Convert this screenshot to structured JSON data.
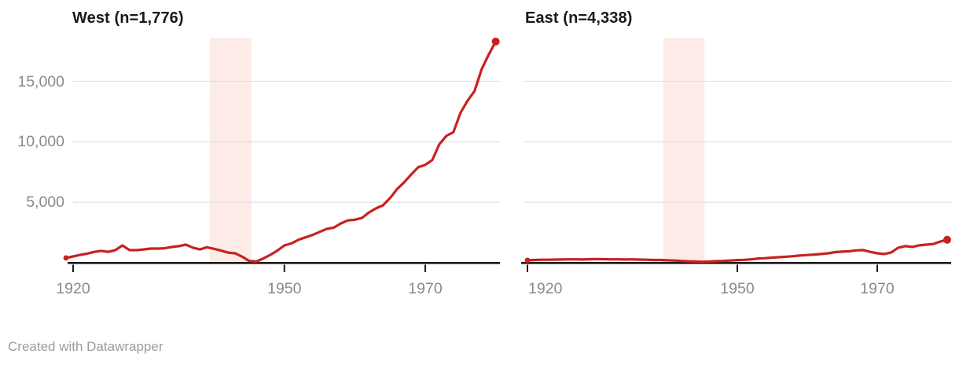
{
  "figure": {
    "footer_text": "Created with Datawrapper"
  },
  "colors": {
    "line": "#c7221f",
    "band": "#fcebe7",
    "grid": "#e3e3e3",
    "axis": "#1a1a1a",
    "tick_label": "#8a8a8a",
    "title": "#1a1a1a",
    "footer_text": "#9c9c9c",
    "background": "#ffffff"
  },
  "chart_data": [
    {
      "id": "west",
      "type": "line",
      "title": "West (n=1,776)",
      "xlabel": "",
      "ylabel": "",
      "legend": "none",
      "grid": true,
      "xlim": [
        1919,
        1981
      ],
      "ylim": [
        0,
        18600
      ],
      "highlight_band": {
        "from": 1939.4,
        "to": 1945.3,
        "meaning": "shaded vertical range ~1939-1945"
      },
      "xticks": [
        {
          "value": 1920,
          "label": "1920"
        },
        {
          "value": 1950,
          "label": "1950"
        },
        {
          "value": 1970,
          "label": "1970"
        }
      ],
      "yticks": [
        {
          "value": 5000,
          "label": "5,000"
        },
        {
          "value": 10000,
          "label": "10,000"
        },
        {
          "value": 15000,
          "label": "15,000"
        }
      ],
      "x": [
        1919,
        1920,
        1921,
        1922,
        1923,
        1924,
        1925,
        1926,
        1927,
        1928,
        1929,
        1930,
        1931,
        1932,
        1933,
        1934,
        1935,
        1936,
        1937,
        1938,
        1939,
        1940,
        1941,
        1942,
        1943,
        1944,
        1945,
        1946,
        1947,
        1948,
        1949,
        1950,
        1951,
        1952,
        1953,
        1954,
        1955,
        1956,
        1957,
        1958,
        1959,
        1960,
        1961,
        1962,
        1963,
        1964,
        1965,
        1966,
        1967,
        1968,
        1969,
        1970,
        1971,
        1972,
        1973,
        1974,
        1975,
        1976,
        1977,
        1978,
        1979,
        1980
      ],
      "values": [
        400,
        520,
        650,
        750,
        900,
        980,
        900,
        1050,
        1430,
        1050,
        1040,
        1100,
        1170,
        1170,
        1200,
        1300,
        1370,
        1500,
        1250,
        1100,
        1280,
        1150,
        1000,
        840,
        780,
        500,
        150,
        100,
        350,
        650,
        1000,
        1430,
        1600,
        1900,
        2100,
        2300,
        2550,
        2800,
        2900,
        3250,
        3500,
        3560,
        3700,
        4150,
        4500,
        4750,
        5350,
        6100,
        6650,
        7300,
        7900,
        8100,
        8500,
        9800,
        10500,
        10800,
        12400,
        13400,
        14200,
        16000,
        17200,
        18300
      ]
    },
    {
      "id": "east",
      "type": "line",
      "title": "East (n=4,338)",
      "xlabel": "",
      "ylabel": "",
      "legend": "none",
      "grid": true,
      "xlim": [
        1919,
        1981
      ],
      "ylim": [
        0,
        18600
      ],
      "highlight_band": {
        "from": 1939.4,
        "to": 1945.3,
        "meaning": "shaded vertical range ~1939-1945"
      },
      "xticks": [
        {
          "value": 1920,
          "label": "1920"
        },
        {
          "value": 1950,
          "label": "1950"
        },
        {
          "value": 1970,
          "label": "1970"
        }
      ],
      "yticks": [
        {
          "value": 5000,
          "label": "5,000"
        },
        {
          "value": 10000,
          "label": "10,000"
        },
        {
          "value": 15000,
          "label": "15,000"
        }
      ],
      "x": [
        1920,
        1921,
        1922,
        1923,
        1924,
        1925,
        1926,
        1927,
        1928,
        1929,
        1930,
        1931,
        1932,
        1933,
        1934,
        1935,
        1936,
        1937,
        1938,
        1939,
        1940,
        1941,
        1942,
        1943,
        1944,
        1945,
        1946,
        1947,
        1948,
        1949,
        1950,
        1951,
        1952,
        1953,
        1954,
        1955,
        1956,
        1957,
        1958,
        1959,
        1960,
        1961,
        1962,
        1963,
        1964,
        1965,
        1966,
        1967,
        1968,
        1969,
        1970,
        1971,
        1972,
        1973,
        1974,
        1975,
        1976,
        1977,
        1978,
        1979,
        1980
      ],
      "values": [
        200,
        230,
        250,
        250,
        260,
        270,
        280,
        280,
        270,
        290,
        300,
        290,
        280,
        280,
        270,
        280,
        260,
        250,
        230,
        230,
        200,
        180,
        150,
        120,
        100,
        80,
        100,
        130,
        150,
        180,
        220,
        240,
        280,
        350,
        380,
        420,
        460,
        500,
        540,
        600,
        640,
        680,
        720,
        780,
        880,
        920,
        950,
        1020,
        1050,
        900,
        780,
        720,
        850,
        1240,
        1370,
        1310,
        1440,
        1500,
        1550,
        1750,
        1900
      ]
    }
  ]
}
